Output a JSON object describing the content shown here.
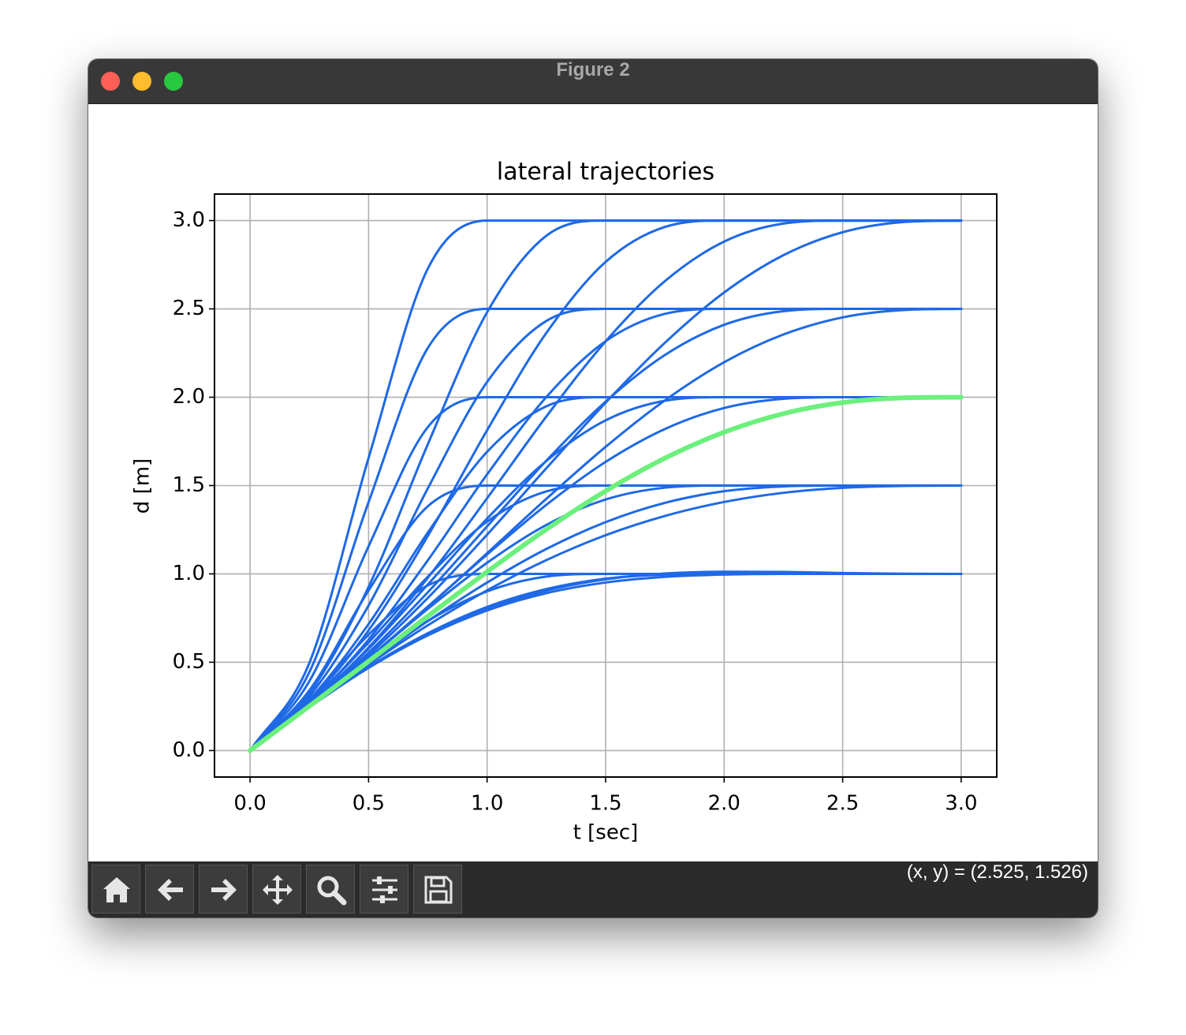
{
  "window": {
    "title": "Figure 2",
    "status": "(x, y) = (2.525, 1.526)"
  },
  "chart_data": {
    "type": "line",
    "title": "lateral trajectories",
    "xlabel": "t [sec]",
    "ylabel": "d [m]",
    "x": [
      0,
      0.25,
      0.5,
      0.75,
      1,
      1.25,
      1.5,
      1.75,
      2,
      2.25,
      2.5,
      2.75,
      3
    ],
    "xlim": [
      -0.15,
      3.15
    ],
    "ylim": [
      -0.15,
      3.15
    ],
    "xticks": [
      {
        "value": 0,
        "label": "0.0"
      },
      0.5,
      {
        "value": 1,
        "label": "1.0"
      },
      1.5,
      {
        "value": 2,
        "label": "2.0"
      },
      2.5,
      {
        "value": 3,
        "label": "3.0"
      }
    ],
    "yticks": [
      {
        "value": 0,
        "label": "0.0"
      },
      0.5,
      {
        "value": 1,
        "label": "1.0"
      },
      1.5,
      {
        "value": 2,
        "label": "2.0"
      },
      2.5,
      {
        "value": 3,
        "label": "3.0"
      }
    ],
    "grid": true,
    "series": [
      {
        "color": "#1f69e6",
        "linewidth": 1.5,
        "values": [
          0,
          0.288,
          0.656,
          0.935,
          1,
          1,
          1,
          1,
          1,
          1,
          1,
          1,
          1
        ]
      },
      {
        "color": "#1f69e6",
        "linewidth": 1.5,
        "values": [
          0,
          0.34,
          0.906,
          1.383,
          1.5,
          1.5,
          1.5,
          1.5,
          1.5,
          1.5,
          1.5,
          1.5,
          1.5
        ]
      },
      {
        "color": "#1f69e6",
        "linewidth": 1.5,
        "values": [
          0,
          0.392,
          1.156,
          1.831,
          2,
          2,
          2,
          2,
          2,
          2,
          2,
          2,
          2
        ]
      },
      {
        "color": "#1f69e6",
        "linewidth": 1.5,
        "values": [
          0,
          0.443,
          1.406,
          2.279,
          2.5,
          2.5,
          2.5,
          2.5,
          2.5,
          2.5,
          2.5,
          2.5,
          2.5
        ]
      },
      {
        "color": "#1f69e6",
        "linewidth": 1.5,
        "values": [
          0,
          0.495,
          1.656,
          2.728,
          3,
          3,
          3,
          3,
          3,
          3,
          3,
          3,
          3
        ]
      },
      {
        "color": "#1f69e6",
        "linewidth": 1.5,
        "values": [
          0,
          0.253,
          0.506,
          0.734,
          0.901,
          0.985,
          1,
          1,
          1,
          1,
          1,
          1,
          1
        ]
      },
      {
        "color": "#1f69e6",
        "linewidth": 1.5,
        "values": [
          0,
          0.27,
          0.611,
          0.984,
          1.296,
          1.467,
          1.5,
          1.5,
          1.5,
          1.5,
          1.5,
          1.5,
          1.5
        ]
      },
      {
        "color": "#1f69e6",
        "linewidth": 1.5,
        "values": [
          0,
          0.288,
          0.716,
          1.234,
          1.691,
          1.949,
          2,
          2,
          2,
          2,
          2,
          2,
          2
        ]
      },
      {
        "color": "#1f69e6",
        "linewidth": 1.5,
        "values": [
          0,
          0.306,
          0.821,
          1.484,
          2.086,
          2.432,
          2.5,
          2.5,
          2.5,
          2.5,
          2.5,
          2.5,
          2.5
        ]
      },
      {
        "color": "#1f69e6",
        "linewidth": 1.5,
        "values": [
          0,
          0.323,
          0.926,
          1.734,
          2.481,
          2.914,
          3,
          3,
          3,
          3,
          3,
          3,
          3
        ]
      },
      {
        "color": "#1f69e6",
        "linewidth": 1.5,
        "values": [
          0,
          0.246,
          0.473,
          0.664,
          0.813,
          0.914,
          0.973,
          0.996,
          1,
          1,
          1,
          1,
          1
        ]
      },
      {
        "color": "#1f69e6",
        "linewidth": 1.5,
        "values": [
          0,
          0.254,
          0.524,
          0.802,
          1.063,
          1.277,
          1.421,
          1.488,
          1.5,
          1.5,
          1.5,
          1.5,
          1.5
        ]
      },
      {
        "color": "#1f69e6",
        "linewidth": 1.5,
        "values": [
          0,
          0.262,
          0.576,
          0.94,
          1.313,
          1.639,
          1.869,
          1.98,
          2,
          2,
          2,
          2,
          2
        ]
      },
      {
        "color": "#1f69e6",
        "linewidth": 1.5,
        "values": [
          0,
          0.27,
          0.628,
          1.077,
          1.563,
          2.001,
          2.317,
          2.472,
          2.5,
          2.5,
          2.5,
          2.5,
          2.5
        ]
      },
      {
        "color": "#1f69e6",
        "linewidth": 1.5,
        "values": [
          0,
          0.278,
          0.68,
          1.215,
          1.813,
          2.364,
          2.766,
          2.964,
          3,
          3,
          3,
          3,
          3
        ]
      },
      {
        "color": "#1f69e6",
        "linewidth": 1.5,
        "values": [
          0,
          0.245,
          0.468,
          0.652,
          0.793,
          0.891,
          0.951,
          0.983,
          0.996,
          1,
          1,
          1,
          1
        ]
      },
      {
        "color": "#1f69e6",
        "linewidth": 1.5,
        "values": [
          0,
          0.25,
          0.496,
          0.733,
          0.951,
          1.141,
          1.293,
          1.402,
          1.468,
          1.495,
          1.5,
          1.5,
          1.5
        ]
      },
      {
        "color": "#1f69e6",
        "linewidth": 1.5,
        "values": [
          0,
          0.254,
          0.525,
          0.815,
          1.11,
          1.391,
          1.634,
          1.82,
          1.939,
          1.991,
          2,
          2,
          2
        ]
      },
      {
        "color": "#1f69e6",
        "linewidth": 1.5,
        "values": [
          0,
          0.258,
          0.554,
          0.896,
          1.269,
          1.641,
          1.975,
          2.239,
          2.41,
          2.487,
          2.5,
          2.5,
          2.5
        ]
      },
      {
        "color": "#1f69e6",
        "linewidth": 1.5,
        "values": [
          0,
          0.263,
          0.583,
          0.978,
          1.428,
          1.891,
          2.316,
          2.657,
          2.881,
          2.983,
          3,
          3,
          3
        ]
      },
      {
        "color": "#1f69e6",
        "linewidth": 1.5,
        "values": [
          0,
          0.246,
          0.47,
          0.657,
          0.802,
          0.905,
          0.969,
          1.002,
          1.012,
          1.011,
          1.005,
          1.001,
          1
        ]
      },
      {
        "color": "#1f69e6",
        "linewidth": 1.5,
        "values": [
          0,
          0.248,
          0.487,
          0.709,
          0.907,
          1.078,
          1.219,
          1.328,
          1.407,
          1.459,
          1.487,
          1.498,
          1.5
        ]
      },
      {
        "color": "#1f69e6",
        "linewidth": 1.5,
        "values": [
          0,
          0.253,
          0.523,
          0.813,
          1.117,
          1.425,
          1.719,
          1.982,
          2.198,
          2.355,
          2.452,
          2.493,
          2.5
        ]
      },
      {
        "color": "#1f69e6",
        "linewidth": 1.5,
        "values": [
          0,
          0.256,
          0.54,
          0.864,
          1.222,
          1.598,
          1.969,
          2.308,
          2.593,
          2.804,
          2.934,
          2.991,
          3
        ]
      },
      {
        "color": "#6cf07c",
        "linewidth": 3,
        "values": [
          0,
          0.251,
          0.505,
          0.761,
          1.012,
          1.252,
          1.469,
          1.655,
          1.802,
          1.907,
          1.97,
          1.996,
          2
        ]
      }
    ]
  }
}
